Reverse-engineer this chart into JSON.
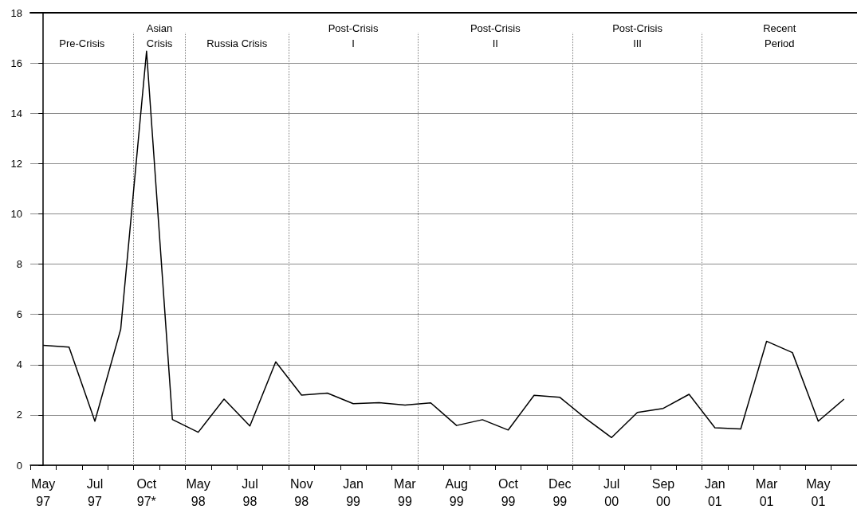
{
  "chart_data": {
    "type": "line",
    "categories": [
      "May 97",
      null,
      "Jul 97",
      null,
      "Oct 97*",
      null,
      "May 98",
      null,
      "Jul 98",
      null,
      "Nov 98",
      null,
      "Jan 99",
      null,
      "Mar 99",
      null,
      "Aug 99",
      null,
      "Oct 99",
      null,
      "Dec 99",
      null,
      "Jul 00",
      null,
      "Sep 00",
      null,
      "Jan 01",
      null,
      "Mar 01",
      null,
      "May 01",
      null
    ],
    "series": [
      {
        "color": "#000000",
        "values": [
          4.77,
          4.7,
          1.75,
          5.41,
          16.47,
          1.82,
          1.31,
          2.63,
          1.56,
          4.11,
          2.79,
          2.87,
          2.45,
          2.49,
          2.39,
          2.48,
          1.58,
          1.81,
          1.4,
          2.78,
          2.7,
          1.86,
          1.1,
          2.1,
          2.26,
          2.82,
          1.49,
          1.44,
          4.93,
          4.48,
          1.75,
          2.63
        ]
      }
    ],
    "ylim": [
      0,
      18
    ],
    "yticks": [
      0,
      2,
      4,
      6,
      8,
      10,
      12,
      14,
      16,
      18
    ],
    "grid": "y",
    "marker": "none",
    "line_style": "solid",
    "annotations": [
      "Pre-Crisis",
      "Asian\nCrisis",
      "Russia Crisis",
      "Post-Crisis\nI",
      "Post-Crisis\nII",
      "Post-Crisis\nIII",
      "Recent\nPeriod"
    ]
  }
}
